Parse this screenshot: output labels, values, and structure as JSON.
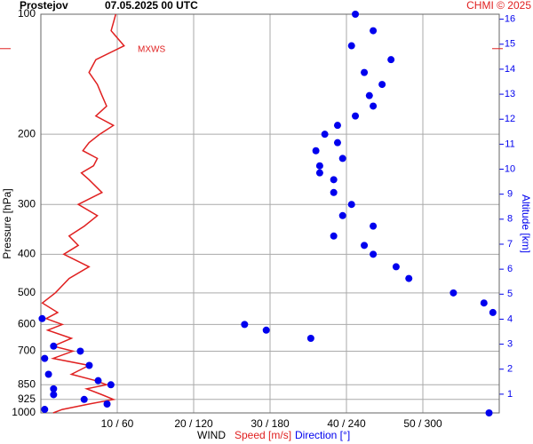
{
  "chart_data": {
    "type": "line",
    "station": "Prostejov",
    "title": "07.05.2025 00 UTC",
    "credit": "CHMI © 2025",
    "ylabel": "Pressure [hPa]",
    "y2label": "Altitude [km]",
    "xlabel": "WIND",
    "annotation": {
      "label": "MXWS",
      "pressure": 122
    },
    "ylog": true,
    "grid": true,
    "xlim": [
      0,
      60
    ],
    "x2lim": [
      0,
      360
    ],
    "xticks": [
      {
        "value": 10,
        "label": "10 / 60"
      },
      {
        "value": 20,
        "label": "20 / 120"
      },
      {
        "value": 30,
        "label": "30 / 180"
      },
      {
        "value": 40,
        "label": "40 / 240"
      },
      {
        "value": 50,
        "label": "50 / 300"
      }
    ],
    "ylim": [
      1000,
      100
    ],
    "yticks": [
      100,
      200,
      300,
      400,
      500,
      600,
      700,
      850,
      925,
      1000
    ],
    "y2lim": [
      0.25,
      16.2
    ],
    "y2ticks": [
      1,
      2,
      3,
      4,
      5,
      6,
      7,
      8,
      9,
      10,
      11,
      12,
      13,
      14,
      15,
      16
    ],
    "y": [
      100,
      110,
      120,
      130,
      140,
      150,
      160,
      170,
      180,
      190,
      200,
      210,
      220,
      230,
      240,
      250,
      260,
      280,
      300,
      320,
      340,
      360,
      380,
      400,
      430,
      460,
      500,
      530,
      560,
      580,
      600,
      620,
      650,
      680,
      700,
      730,
      760,
      800,
      830,
      850,
      870,
      900,
      925,
      950,
      980,
      1000
    ],
    "series": [
      {
        "name": "Speed [m/s]",
        "color": "#e02020",
        "values": [
          9.8,
          9.2,
          10.9,
          7.2,
          6.3,
          7.4,
          8.0,
          8.6,
          7.2,
          9.5,
          7.7,
          6.3,
          5.5,
          7.4,
          6.9,
          5.3,
          6.3,
          8.0,
          4.9,
          7.4,
          5.7,
          3.7,
          4.9,
          3.0,
          6.3,
          3.7,
          1.9,
          0.2,
          2.2,
          0.7,
          2.8,
          0.9,
          4.0,
          1.6,
          4.2,
          1.6,
          6.3,
          4.0,
          7.2,
          8.6,
          6.0,
          8.0,
          9.5,
          6.3,
          2.8,
          1.6
        ]
      },
      {
        "name": "Direction [°]",
        "color": "#0000ee",
        "axis": "x2",
        "values": [
          247,
          261,
          244,
          275,
          254,
          268,
          258,
          261,
          247,
          233,
          223,
          233,
          216,
          237,
          219,
          219,
          230,
          230,
          244,
          237,
          261,
          230,
          254,
          261,
          279,
          289,
          324,
          348,
          355,
          1,
          160,
          177,
          212,
          10,
          31,
          3,
          38,
          6,
          45,
          55,
          10,
          10,
          34,
          52,
          3,
          352
        ]
      }
    ]
  }
}
